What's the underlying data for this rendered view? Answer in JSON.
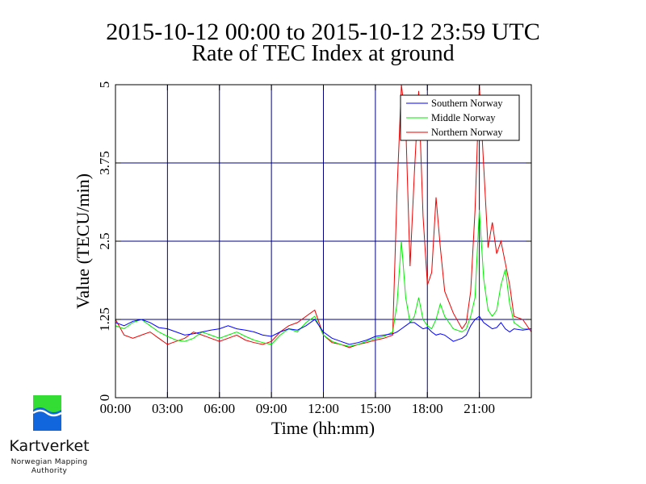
{
  "title": "2015-10-12 00:00 to 2015-10-12 23:59 UTC",
  "subtitle": "Rate of TEC Index at ground",
  "logo": {
    "name": "Kartverket",
    "sub_line1": "Norwegian Mapping",
    "sub_line2": "Authority",
    "colors": {
      "green": "#33dd33",
      "blue": "#1166dd"
    }
  },
  "chart_data": {
    "type": "line",
    "title": "2015-10-12 00:00 to 2015-10-12 23:59 UTC",
    "subtitle": "Rate of TEC Index at ground",
    "xlabel": "Time (hh:mm)",
    "ylabel": "Value (TECU/min)",
    "xlim": [
      0,
      24
    ],
    "ylim": [
      0,
      5
    ],
    "x_ticks": [
      0,
      3,
      6,
      9,
      12,
      15,
      18,
      21
    ],
    "x_tick_labels": [
      "00:00",
      "03:00",
      "06:00",
      "09:00",
      "12:00",
      "15:00",
      "18:00",
      "21:00"
    ],
    "y_ticks": [
      0,
      1.25,
      2.5,
      3.75,
      5
    ],
    "y_tick_labels": [
      "0",
      "1.25",
      "2.5",
      "3.75",
      "5"
    ],
    "grid": true,
    "grid_color": "#000080",
    "legend_position": "top-right",
    "x": [
      0,
      0.5,
      1,
      1.5,
      2,
      2.5,
      3,
      3.5,
      4,
      4.5,
      5,
      5.5,
      6,
      6.5,
      7,
      7.5,
      8,
      8.5,
      9,
      9.5,
      10,
      10.5,
      11,
      11.5,
      12,
      12.5,
      13,
      13.5,
      14,
      14.5,
      15,
      15.5,
      16,
      16.25,
      16.5,
      16.75,
      17,
      17.25,
      17.5,
      17.75,
      18,
      18.25,
      18.5,
      18.75,
      19,
      19.5,
      20,
      20.25,
      20.5,
      20.75,
      21,
      21.25,
      21.5,
      21.75,
      22,
      22.25,
      22.5,
      22.75,
      23,
      23.5,
      24
    ],
    "series": [
      {
        "name": "Southern Norway",
        "color": "#0000ff",
        "values": [
          1.2,
          1.15,
          1.22,
          1.25,
          1.2,
          1.12,
          1.1,
          1.05,
          1.0,
          1.02,
          1.05,
          1.08,
          1.1,
          1.15,
          1.1,
          1.08,
          1.05,
          1.0,
          0.98,
          1.05,
          1.1,
          1.08,
          1.15,
          1.25,
          1.05,
          0.95,
          0.9,
          0.85,
          0.88,
          0.92,
          0.98,
          1.0,
          1.02,
          1.05,
          1.1,
          1.15,
          1.2,
          1.2,
          1.15,
          1.1,
          1.12,
          1.05,
          1.0,
          1.02,
          1.0,
          0.9,
          0.95,
          1.0,
          1.15,
          1.25,
          1.3,
          1.2,
          1.15,
          1.1,
          1.12,
          1.2,
          1.1,
          1.05,
          1.1,
          1.08,
          1.1
        ]
      },
      {
        "name": "Middle Norway",
        "color": "#00ee00",
        "values": [
          1.15,
          1.1,
          1.2,
          1.25,
          1.15,
          1.05,
          0.98,
          0.92,
          0.9,
          0.95,
          1.05,
          1.0,
          0.95,
          1.0,
          1.05,
          0.98,
          0.92,
          0.88,
          0.85,
          1.0,
          1.1,
          1.05,
          1.2,
          1.3,
          1.0,
          0.9,
          0.85,
          0.82,
          0.85,
          0.9,
          0.95,
          0.98,
          1.05,
          1.5,
          2.5,
          1.6,
          1.2,
          1.3,
          1.6,
          1.25,
          1.15,
          1.1,
          1.25,
          1.5,
          1.3,
          1.1,
          1.05,
          1.1,
          1.3,
          1.6,
          3.0,
          1.9,
          1.4,
          1.3,
          1.4,
          1.8,
          2.05,
          1.5,
          1.2,
          1.1,
          1.1
        ]
      },
      {
        "name": "Northern Norway",
        "color": "#ee0000",
        "values": [
          1.25,
          1.0,
          0.95,
          1.0,
          1.05,
          0.95,
          0.85,
          0.9,
          0.95,
          1.05,
          1.0,
          0.95,
          0.9,
          0.95,
          1.0,
          0.92,
          0.88,
          0.85,
          0.9,
          1.05,
          1.15,
          1.2,
          1.3,
          1.4,
          1.0,
          0.88,
          0.85,
          0.8,
          0.85,
          0.88,
          0.92,
          0.95,
          1.0,
          3.3,
          5.0,
          4.4,
          2.1,
          3.6,
          4.9,
          2.9,
          1.8,
          2.0,
          3.2,
          2.4,
          1.7,
          1.35,
          1.1,
          1.2,
          1.7,
          3.0,
          5.0,
          3.7,
          2.4,
          2.8,
          2.3,
          2.5,
          2.15,
          1.8,
          1.3,
          1.25,
          1.05
        ]
      }
    ]
  }
}
